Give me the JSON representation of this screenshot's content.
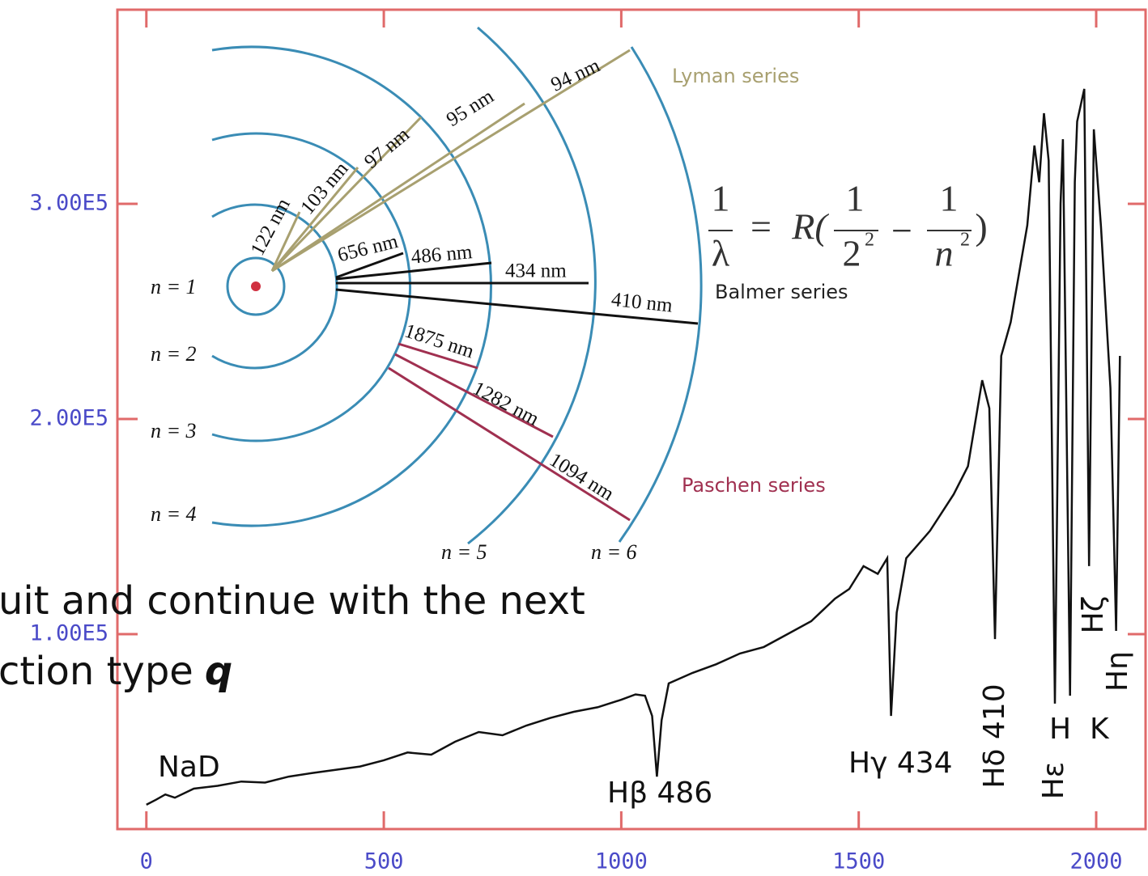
{
  "chart_data": {
    "type": "line",
    "color": "#111111",
    "x": [
      0,
      20,
      40,
      60,
      100,
      150,
      200,
      250,
      300,
      350,
      400,
      450,
      500,
      550,
      600,
      650,
      700,
      750,
      800,
      850,
      900,
      950,
      1000,
      1030,
      1050,
      1065,
      1075,
      1085,
      1100,
      1150,
      1200,
      1250,
      1300,
      1350,
      1400,
      1450,
      1480,
      1510,
      1540,
      1560,
      1568,
      1580,
      1600,
      1650,
      1700,
      1730,
      1760,
      1775,
      1787,
      1800,
      1820,
      1840,
      1855,
      1870,
      1880,
      1890,
      1900,
      1913,
      1925,
      1930,
      1945,
      1955,
      1960,
      1975,
      1985,
      1995,
      2010,
      2030,
      2042,
      2050
    ],
    "values": [
      20700,
      23000,
      25500,
      24000,
      28200,
      29500,
      31500,
      31000,
      33800,
      35500,
      37000,
      38500,
      41400,
      45000,
      44000,
      50000,
      54500,
      53000,
      57500,
      61000,
      63900,
      66000,
      69500,
      72000,
      71400,
      62000,
      33800,
      60000,
      77100,
      82000,
      86000,
      91000,
      94000,
      100000,
      106000,
      116500,
      121000,
      131600,
      128000,
      135300,
      62000,
      110000,
      135300,
      148000,
      165000,
      178000,
      218000,
      205000,
      97700,
      229300,
      245000,
      270700,
      290000,
      327100,
      310000,
      342100,
      320000,
      67700,
      300000,
      330000,
      71400,
      310000,
      338300,
      353400,
      131600,
      334600,
      289500,
      214300,
      101500,
      229300
    ],
    "xlim": [
      -61,
      2104
    ],
    "ylim": [
      9400,
      390200
    ],
    "xticks": [
      0,
      500,
      1000,
      1500,
      2000
    ],
    "yticks": [
      {
        "value": 100000,
        "label": "1.00E5"
      },
      {
        "value": 200000,
        "label": "2.00E5"
      },
      {
        "value": 300000,
        "label": "3.00E5"
      }
    ],
    "grid": false,
    "annotations": [
      "NaD",
      "Hβ 486",
      "Hγ 434",
      "Hδ 410",
      "H",
      "Hε",
      "K",
      "Hζ",
      "Hη"
    ]
  },
  "diagram": {
    "levels": [
      "n = 1",
      "n = 2",
      "n = 3",
      "n = 4",
      "n = 5",
      "n = 6"
    ],
    "lyman": {
      "name": "Lyman series",
      "lines": [
        "122 nm",
        "103 nm",
        "97 nm",
        "95 nm",
        "94 nm"
      ]
    },
    "balmer": {
      "name": "Balmer series",
      "lines": [
        "656 nm",
        "486 nm",
        "434 nm",
        "410 nm"
      ]
    },
    "paschen": {
      "name": "Paschen series",
      "lines": [
        "1875 nm",
        "1282 nm",
        "1094 nm"
      ]
    },
    "equation": {
      "lhs_num": "1",
      "lhs_den": "λ",
      "equals": "=",
      "R": "R(",
      "t1_num": "1",
      "t1_den": "2",
      "t1_exp": "2",
      "minus": "−",
      "t2_num": "1",
      "t2_den": "n",
      "t2_exp": "2",
      "close": ")"
    }
  },
  "overlay_text": {
    "line1": "uit and continue with the next",
    "line2": "ction  type",
    "key": "q"
  }
}
